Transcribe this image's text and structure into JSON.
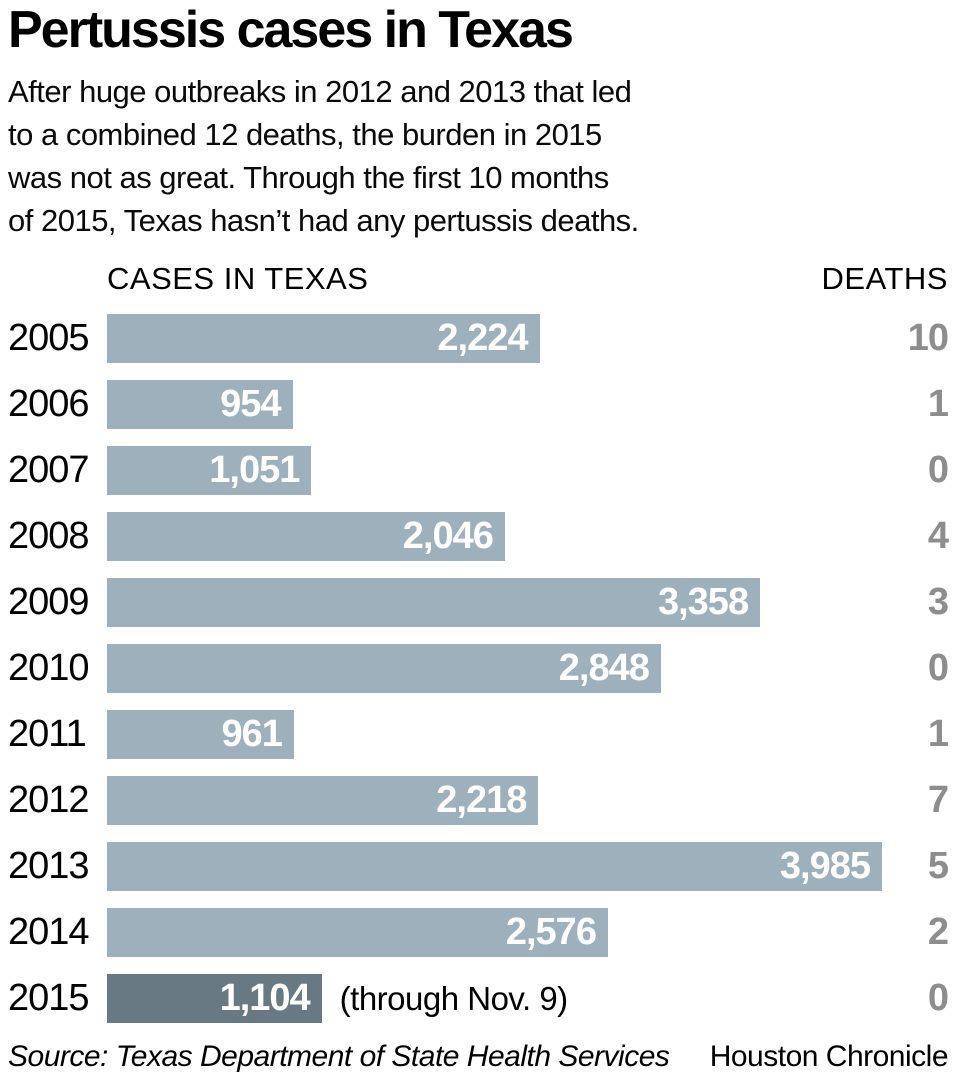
{
  "title": "Pertussis cases in Texas",
  "subtitle": {
    "lines": [
      "After huge outbreaks in 2012 and 2013 that led",
      "to a combined 12 deaths, the burden in 2015",
      "was not as great. Through the first 10 months",
      "of 2015, Texas hasn’t had any pertussis deaths."
    ]
  },
  "columns": {
    "cases": "CASES IN TEXAS",
    "deaths": "DEATHS"
  },
  "chart_data": {
    "type": "bar",
    "orientation": "horizontal",
    "title": "Pertussis cases in Texas",
    "categories": [
      "2005",
      "2006",
      "2007",
      "2008",
      "2009",
      "2010",
      "2011",
      "2012",
      "2013",
      "2014",
      "2015"
    ],
    "series": [
      {
        "name": "CASES IN TEXAS",
        "values": [
          2224,
          954,
          1051,
          2046,
          3358,
          2848,
          961,
          2218,
          3985,
          2576,
          1104
        ]
      },
      {
        "name": "DEATHS",
        "values": [
          10,
          1,
          0,
          4,
          3,
          0,
          1,
          7,
          5,
          2,
          0
        ]
      }
    ],
    "value_labels": [
      "2,224",
      "954",
      "1,051",
      "2,046",
      "3,358",
      "2,848",
      "961",
      "2,218",
      "3,985",
      "2,576",
      "1,104"
    ],
    "deaths_labels": [
      "10",
      "1",
      "0",
      "4",
      "3",
      "0",
      "1",
      "7",
      "5",
      "2",
      "0"
    ],
    "notes": [
      "",
      "",
      "",
      "",
      "",
      "",
      "",
      "",
      "",
      "",
      "(through Nov. 9)"
    ],
    "highlight_category": "2015",
    "xlim": [
      0,
      3985
    ],
    "legend_position": "none",
    "grid": false,
    "colors": {
      "bar": "#9db0bb",
      "highlight_bar": "#687983",
      "value_text": "#ffffff",
      "deaths_text": "#8d8d8d"
    }
  },
  "footer": {
    "source": "Source: Texas Department of State Health Services",
    "credit": "Houston Chronicle"
  }
}
